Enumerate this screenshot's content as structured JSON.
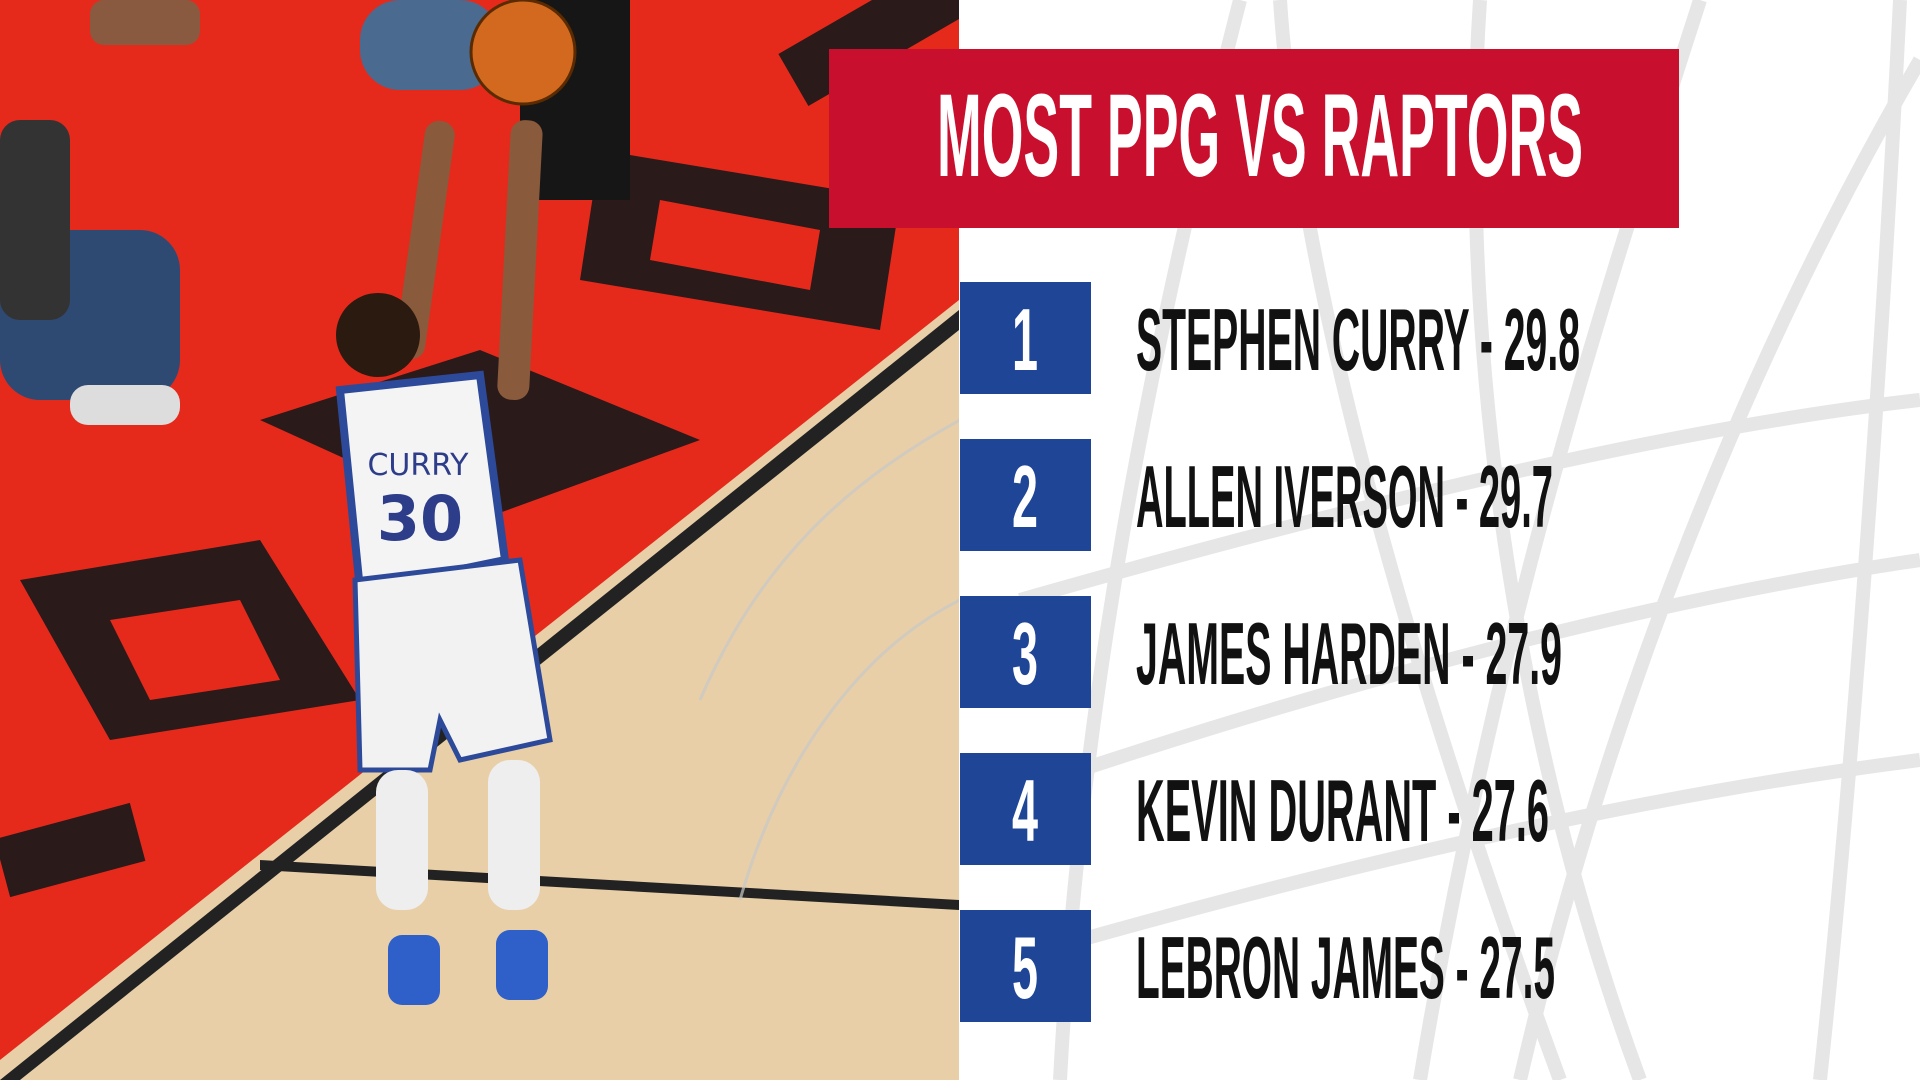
{
  "title": "MOST PPG VS RAPTORS",
  "rows": [
    {
      "rank": "1",
      "label": "STEPHEN CURRY - 29.8"
    },
    {
      "rank": "2",
      "label": "ALLEN IVERSON - 29.7"
    },
    {
      "rank": "3",
      "label": "JAMES HARDEN - 27.9"
    },
    {
      "rank": "4",
      "label": "KEVIN DURANT - 27.6"
    },
    {
      "rank": "5",
      "label": "LEBRON JAMES - 27.5"
    }
  ],
  "photo": {
    "jersey_name": "CURRY",
    "jersey_number": "30"
  }
}
